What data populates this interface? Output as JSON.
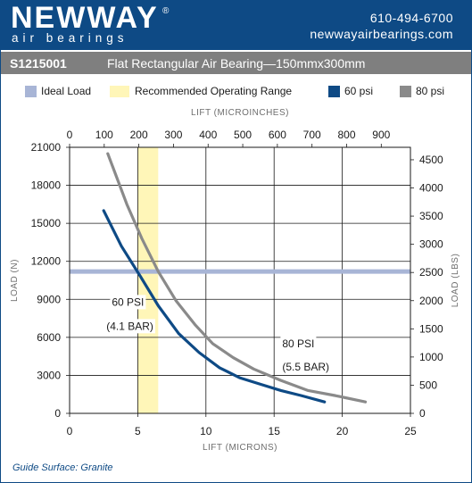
{
  "header": {
    "brand": "NEWWAY",
    "reg_mark": "®",
    "tagline": "air bearings",
    "phone": "610-494-6700",
    "website": "newwayairbearings.com"
  },
  "titlebar": {
    "model": "S1215001",
    "product": "Flat Rectangular Air Bearing—150mmx300mm"
  },
  "legend": [
    {
      "label": "Ideal Load",
      "color": "#a8b5d6"
    },
    {
      "label": "Recommended Operating Range",
      "color": "#fff6b8"
    },
    {
      "label": "60 psi",
      "color": "#0e4a85"
    },
    {
      "label": "80 psi",
      "color": "#8a8a8a"
    }
  ],
  "footnote": "Guide Surface: Granite",
  "chart_data": {
    "type": "line",
    "xlabel": "LIFT (MICRONS)",
    "x2label": "LIFT (MICROINCHES)",
    "ylabel": "LOAD (N)",
    "y2label": "LOAD (LBS)",
    "xlim": [
      0,
      25
    ],
    "ylim": [
      0,
      21000
    ],
    "x2lim": [
      0,
      984.25
    ],
    "y2lim": [
      0,
      4721
    ],
    "xticks": [
      "0",
      "5",
      "10",
      "15",
      "20",
      "25"
    ],
    "yticks": [
      "0",
      "3000",
      "6000",
      "9000",
      "12000",
      "15000",
      "18000",
      "21000"
    ],
    "x2ticks": [
      "0",
      "100",
      "200",
      "300",
      "400",
      "500",
      "600",
      "700",
      "800",
      "900"
    ],
    "y2ticks": [
      "0",
      "500",
      "1000",
      "1500",
      "2000",
      "2500",
      "3000",
      "3500",
      "4000",
      "4500"
    ],
    "grid": true,
    "ideal_load": 11200,
    "recommended_range": [
      5,
      6.5
    ],
    "series": [
      {
        "name": "60 psi",
        "color": "#0e4a85",
        "x": [
          2.5,
          3.8,
          5.2,
          6.5,
          8,
          9.5,
          11,
          12.5,
          14,
          15.5,
          17,
          18.7
        ],
        "y": [
          16000,
          13200,
          10800,
          8500,
          6300,
          4800,
          3600,
          2800,
          2300,
          1800,
          1400,
          900
        ]
      },
      {
        "name": "80 psi",
        "color": "#8a8a8a",
        "x": [
          2.8,
          4.2,
          5.3,
          6.5,
          7.8,
          9.2,
          10.5,
          12,
          13.5,
          15.5,
          17.5,
          19.5,
          21.7
        ],
        "y": [
          20500,
          16500,
          13800,
          11200,
          8900,
          7000,
          5500,
          4400,
          3500,
          2600,
          1800,
          1400,
          900
        ]
      }
    ],
    "annotations": [
      {
        "text": "60 PSI",
        "x": 3.1,
        "y": 8500
      },
      {
        "text": "(4.1 BAR)",
        "x": 2.7,
        "y": 6600
      },
      {
        "text": "80 PSI",
        "x": 15.6,
        "y": 5200
      },
      {
        "text": "(5.5 BAR)",
        "x": 15.6,
        "y": 3400
      }
    ]
  }
}
